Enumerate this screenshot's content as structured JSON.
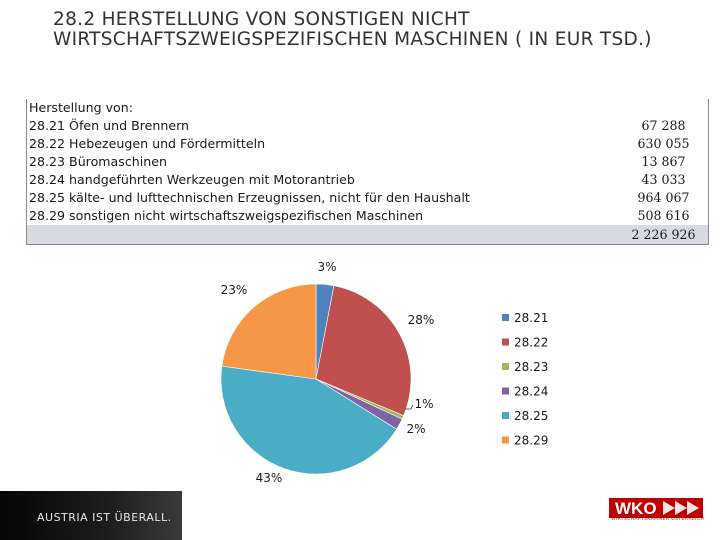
{
  "slide": {
    "title": "28.2    HERSTELLUNG VON SONSTIGEN NICHT WIRTSCHAFTSZWEIGSPEZIFISCHEN  MASCHINEN ( IN EUR TSD.)"
  },
  "table": {
    "header": "Herstellung von:",
    "rows": [
      {
        "label": "28.21 Öfen und Brennern",
        "value": "67 288"
      },
      {
        "label": "28.22 Hebezeugen und Fördermitteln",
        "value": "630 055"
      },
      {
        "label": "28.23 Büromaschinen",
        "value": "13 867"
      },
      {
        "label": "28.24 handgeführten Werkzeugen mit Motorantrieb",
        "value": "43 033"
      },
      {
        "label": "28.25 kälte- und lufttechnischen Erzeugnissen, nicht für den Haushalt",
        "value": "964 067"
      },
      {
        "label": "28.29 sonstigen nicht wirtschaftszweigspezifischen Maschinen",
        "value": "508 616"
      }
    ],
    "total": "2 226 926"
  },
  "chart_data": {
    "type": "pie",
    "categories": [
      "28.21",
      "28.22",
      "28.23",
      "28.24",
      "28.25",
      "28.29"
    ],
    "values": [
      67288,
      630055,
      13867,
      43033,
      964067,
      508616
    ],
    "data_labels": [
      "3%",
      "28%",
      "1%",
      "2%",
      "43%",
      "23%"
    ],
    "colors": [
      "#4f81bd",
      "#c0504d",
      "#9bbb59",
      "#8064a2",
      "#4bacc6",
      "#f79646"
    ],
    "legend_position": "right"
  },
  "footer": {
    "slogan": "AUSTRIA IST ÜBERALL.",
    "logo_text": "WKO",
    "logo_subtext": "WIRTSCHAFTSKAMMER ÖSTERREICH",
    "brand_color": "#c00000"
  }
}
